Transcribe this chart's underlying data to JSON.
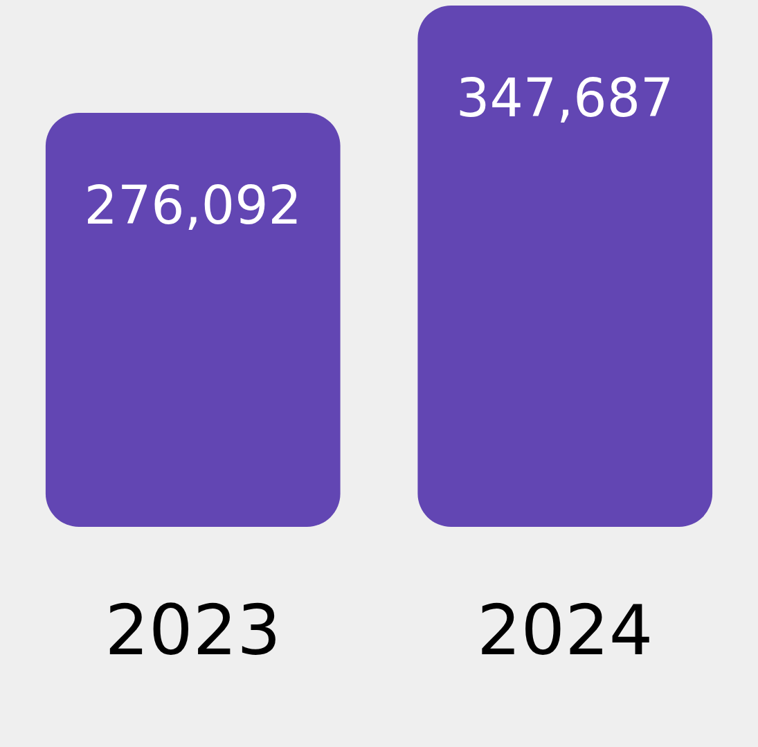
{
  "chart_data": {
    "type": "bar",
    "categories": [
      "2023",
      "2024"
    ],
    "values": [
      276092,
      347687
    ],
    "value_labels": [
      "276,092",
      "347,687"
    ],
    "color": "#6246b3",
    "legend": false
  }
}
